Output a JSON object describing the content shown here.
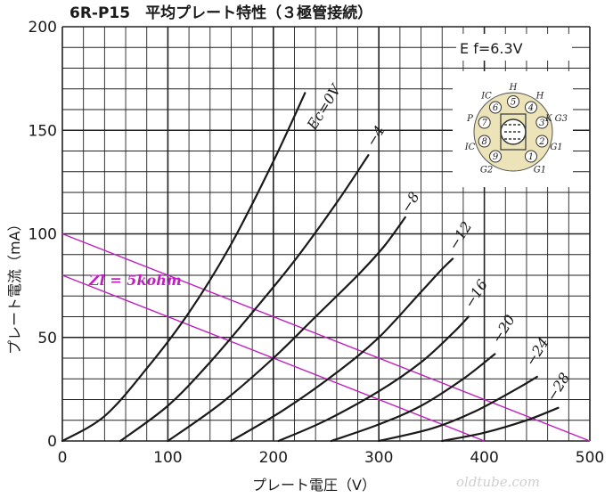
{
  "chart_data": {
    "type": "line",
    "title": "6R-P15　平均プレート特性（３極管接続）",
    "xlabel": "プレート電圧（V）",
    "ylabel": "プレート電流（mA）",
    "xlim": [
      0,
      500
    ],
    "ylim": [
      0,
      200
    ],
    "x_ticks": [
      "0",
      "100",
      "200",
      "300",
      "400",
      "500"
    ],
    "y_ticks": [
      "0",
      "50",
      "100",
      "150",
      "200"
    ],
    "grid": true,
    "heater_annotation": "E f=6.3V",
    "series": [
      {
        "name": "Ec=0V",
        "points": [
          [
            0,
            0
          ],
          [
            40,
            12
          ],
          [
            80,
            35
          ],
          [
            120,
            62
          ],
          [
            160,
            95
          ],
          [
            200,
            135
          ],
          [
            230,
            168
          ]
        ]
      },
      {
        "name": "−4",
        "points": [
          [
            55,
            0
          ],
          [
            100,
            17
          ],
          [
            140,
            38
          ],
          [
            180,
            62
          ],
          [
            220,
            87
          ],
          [
            260,
            115
          ],
          [
            290,
            138
          ]
        ]
      },
      {
        "name": "−8",
        "points": [
          [
            100,
            0
          ],
          [
            150,
            18
          ],
          [
            200,
            40
          ],
          [
            240,
            60
          ],
          [
            280,
            80
          ],
          [
            305,
            94
          ],
          [
            325,
            108
          ]
        ]
      },
      {
        "name": "−12",
        "points": [
          [
            160,
            0
          ],
          [
            210,
            15
          ],
          [
            260,
            33
          ],
          [
            300,
            50
          ],
          [
            340,
            72
          ],
          [
            360,
            83
          ],
          [
            370,
            88
          ]
        ]
      },
      {
        "name": "−16",
        "points": [
          [
            205,
            0
          ],
          [
            250,
            10
          ],
          [
            300,
            24
          ],
          [
            340,
            38
          ],
          [
            370,
            52
          ],
          [
            385,
            60
          ]
        ]
      },
      {
        "name": "−20",
        "points": [
          [
            255,
            0
          ],
          [
            300,
            8
          ],
          [
            340,
            17
          ],
          [
            380,
            30
          ],
          [
            410,
            42
          ]
        ]
      },
      {
        "name": "−24",
        "points": [
          [
            300,
            0
          ],
          [
            350,
            6
          ],
          [
            390,
            14
          ],
          [
            430,
            25
          ],
          [
            450,
            31
          ]
        ]
      },
      {
        "name": "−28",
        "points": [
          [
            360,
            0
          ],
          [
            400,
            4
          ],
          [
            440,
            10
          ],
          [
            470,
            16
          ]
        ]
      }
    ],
    "load_lines": [
      {
        "name": "Zl = 5kohm",
        "points": [
          [
            0,
            100
          ],
          [
            500,
            0
          ]
        ]
      },
      {
        "name": "",
        "points": [
          [
            0,
            80
          ],
          [
            400,
            0
          ]
        ]
      }
    ]
  },
  "curve_labels": [
    {
      "text": "Ec=0V",
      "at": [
        236,
        148
      ]
    },
    {
      "text": "−4",
      "at": [
        292,
        140
      ]
    },
    {
      "text": "−8",
      "at": [
        325,
        108
      ]
    },
    {
      "text": "−12",
      "at": [
        370,
        90
      ]
    },
    {
      "text": "−16",
      "at": [
        385,
        62
      ]
    },
    {
      "text": "−20",
      "at": [
        411,
        45
      ]
    },
    {
      "text": "−24",
      "at": [
        443,
        34
      ]
    },
    {
      "text": "−28",
      "at": [
        463,
        17
      ]
    }
  ],
  "base_diagram": {
    "pins": [
      "1",
      "2",
      "3",
      "4",
      "5",
      "6",
      "7",
      "8",
      "9"
    ],
    "pin_labels": [
      "G1",
      "G1",
      "K G3",
      "H",
      "H",
      "IC",
      "P",
      "IC",
      "G2"
    ]
  },
  "watermark": "oldtube.com",
  "colors": {
    "curve": "#1a1a1a",
    "grid": "#222222",
    "load_line": "#c020c0",
    "tube_base": "#ece4b8"
  }
}
